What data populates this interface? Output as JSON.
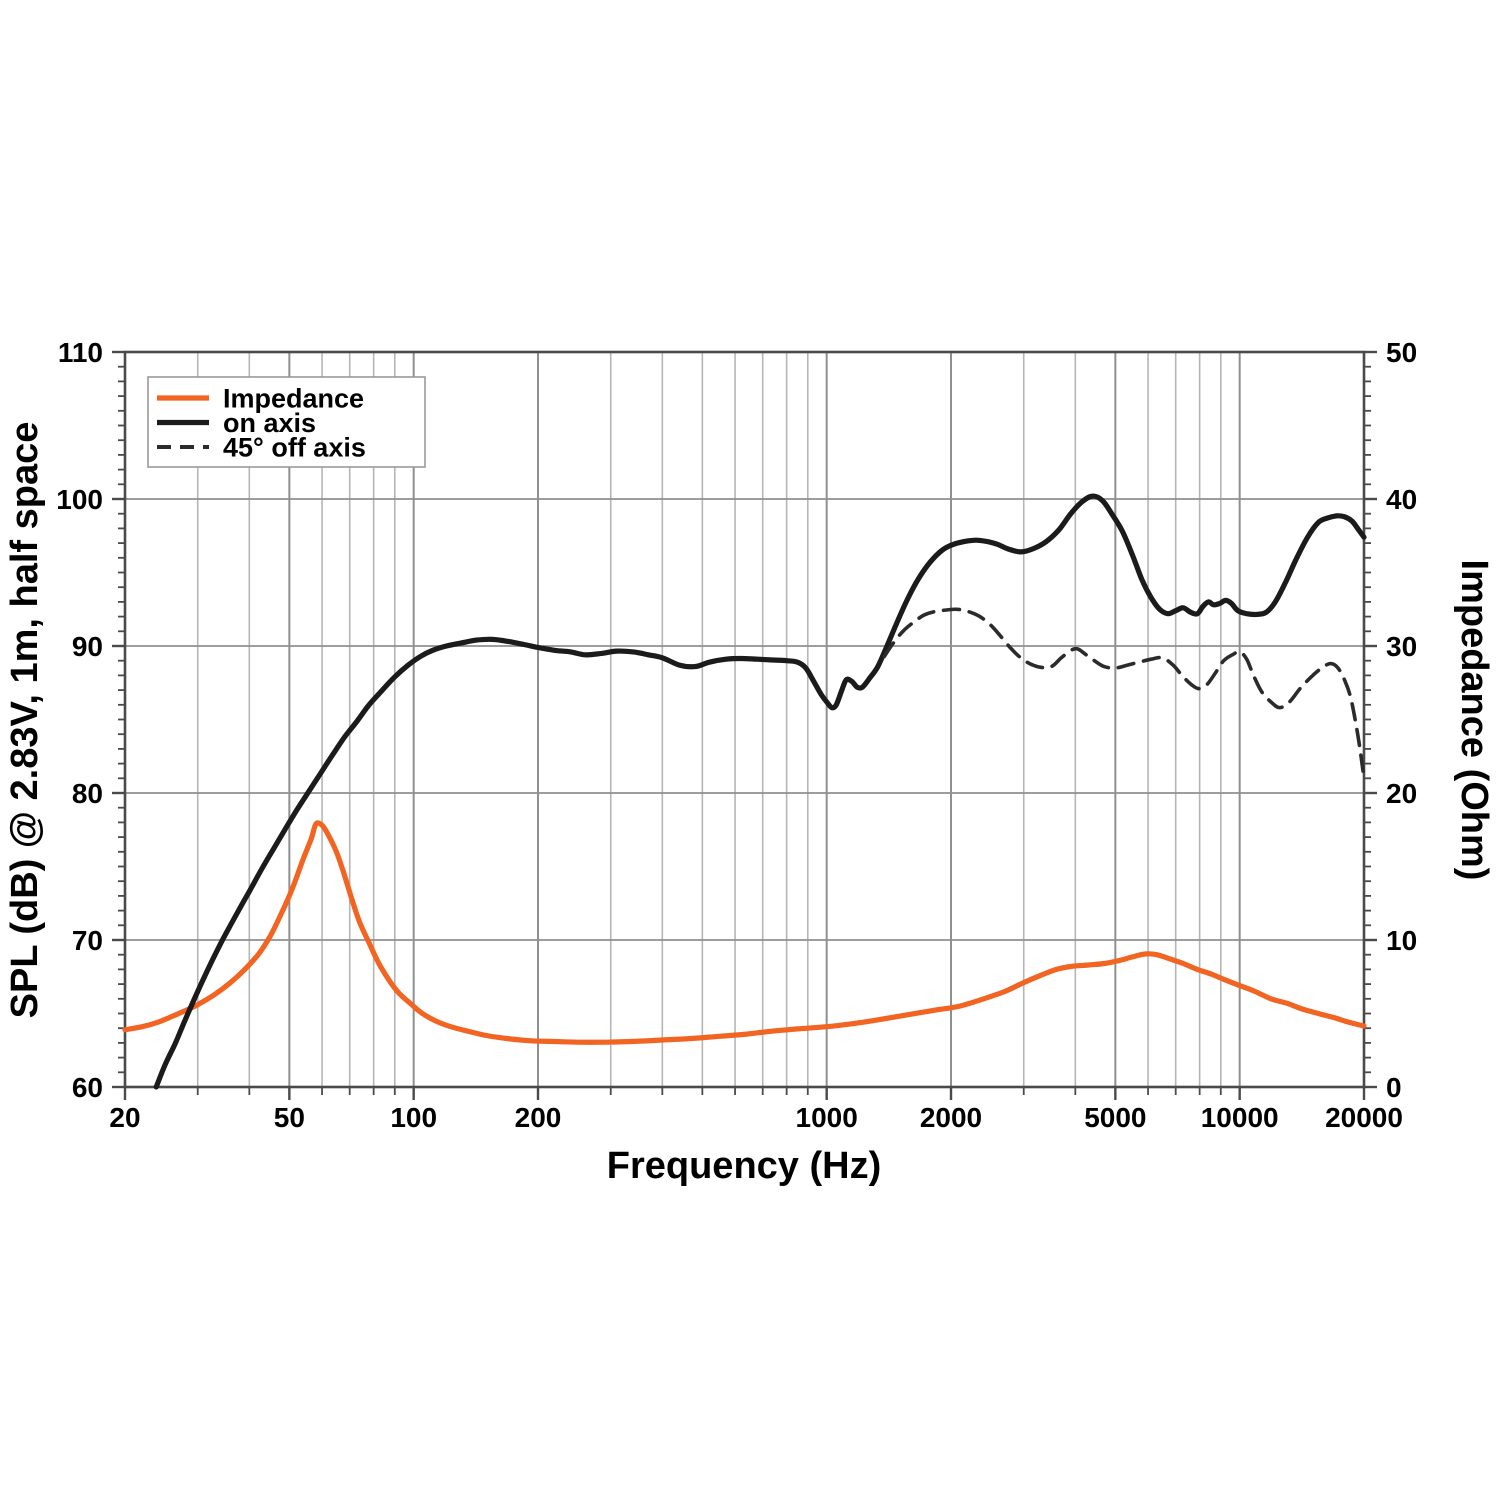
{
  "chart_data": {
    "type": "line",
    "title": "",
    "xlabel": "Frequency (Hz)",
    "ylabel_left": "SPL (dB) @ 2.83V, 1m, half space",
    "ylabel_right": "Impedance (Ohm)",
    "x_scale": "log",
    "xlim": [
      20,
      20000
    ],
    "ylim_left": [
      60,
      110
    ],
    "ylim_right": [
      0,
      50
    ],
    "grid": true,
    "x_ticks_labeled": [
      20,
      50,
      100,
      200,
      1000,
      2000,
      5000,
      10000,
      20000
    ],
    "x_gridlines_major": [
      50,
      100,
      200,
      1000,
      2000,
      5000,
      10000
    ],
    "x_gridlines_minor": [
      30,
      40,
      60,
      70,
      80,
      90,
      300,
      400,
      500,
      600,
      700,
      800,
      900,
      3000,
      4000,
      6000,
      7000,
      8000,
      9000
    ],
    "y_ticks_left": [
      60,
      70,
      80,
      90,
      100,
      110
    ],
    "y_ticks_right": [
      0,
      10,
      20,
      30,
      40,
      50
    ],
    "y_gridlines_left": [
      70,
      80,
      90,
      100
    ],
    "y_minor_tick_step_left": 1,
    "y_minor_tick_step_right": 1,
    "legend": {
      "position": "top-left",
      "items": [
        {
          "label": "Impedance",
          "color": "#f26422",
          "dash": "solid",
          "axis": "right"
        },
        {
          "label": "on axis",
          "color": "#1b1b1b",
          "dash": "solid",
          "axis": "left"
        },
        {
          "label": "45° off axis",
          "color": "#2b2b2b",
          "dash": "dashed",
          "axis": "left"
        }
      ]
    },
    "series": [
      {
        "name": "Impedance",
        "axis": "right",
        "unit": "Ohm",
        "color": "#f26422",
        "style": "solid",
        "points": [
          [
            20,
            3.9
          ],
          [
            22,
            4.1
          ],
          [
            24,
            4.4
          ],
          [
            26,
            4.8
          ],
          [
            28,
            5.2
          ],
          [
            30,
            5.6
          ],
          [
            33,
            6.3
          ],
          [
            36,
            7.1
          ],
          [
            39,
            8.0
          ],
          [
            42,
            9.0
          ],
          [
            45,
            10.3
          ],
          [
            48,
            11.9
          ],
          [
            51,
            13.6
          ],
          [
            54,
            15.5
          ],
          [
            56.5,
            16.9
          ],
          [
            58,
            17.9
          ],
          [
            60,
            17.8
          ],
          [
            62,
            17.2
          ],
          [
            65,
            16.0
          ],
          [
            68,
            14.4
          ],
          [
            71,
            12.7
          ],
          [
            74,
            11.2
          ],
          [
            78,
            9.8
          ],
          [
            82,
            8.5
          ],
          [
            87,
            7.3
          ],
          [
            92,
            6.4
          ],
          [
            98,
            5.7
          ],
          [
            105,
            5.0
          ],
          [
            113,
            4.5
          ],
          [
            123,
            4.1
          ],
          [
            135,
            3.8
          ],
          [
            150,
            3.5
          ],
          [
            168,
            3.3
          ],
          [
            190,
            3.15
          ],
          [
            215,
            3.1
          ],
          [
            250,
            3.05
          ],
          [
            290,
            3.05
          ],
          [
            340,
            3.1
          ],
          [
            400,
            3.2
          ],
          [
            470,
            3.3
          ],
          [
            550,
            3.45
          ],
          [
            640,
            3.6
          ],
          [
            740,
            3.8
          ],
          [
            850,
            3.95
          ],
          [
            1000,
            4.1
          ],
          [
            1150,
            4.3
          ],
          [
            1350,
            4.6
          ],
          [
            1600,
            4.95
          ],
          [
            1850,
            5.25
          ],
          [
            2100,
            5.5
          ],
          [
            2400,
            6.0
          ],
          [
            2700,
            6.5
          ],
          [
            3000,
            7.1
          ],
          [
            3300,
            7.6
          ],
          [
            3600,
            8.0
          ],
          [
            3900,
            8.2
          ],
          [
            4300,
            8.3
          ],
          [
            4700,
            8.4
          ],
          [
            5100,
            8.6
          ],
          [
            5500,
            8.85
          ],
          [
            5900,
            9.05
          ],
          [
            6300,
            9.0
          ],
          [
            6800,
            8.7
          ],
          [
            7300,
            8.4
          ],
          [
            7900,
            8.0
          ],
          [
            8500,
            7.7
          ],
          [
            9200,
            7.3
          ],
          [
            10000,
            6.9
          ],
          [
            10900,
            6.5
          ],
          [
            11900,
            6.0
          ],
          [
            13000,
            5.7
          ],
          [
            14200,
            5.3
          ],
          [
            15500,
            5.0
          ],
          [
            17000,
            4.7
          ],
          [
            18400,
            4.4
          ],
          [
            20000,
            4.15
          ]
        ]
      },
      {
        "name": "on axis",
        "axis": "left",
        "unit": "dB",
        "color": "#1b1b1b",
        "style": "solid",
        "points": [
          [
            23.8,
            60
          ],
          [
            25,
            61.5
          ],
          [
            26.5,
            63
          ],
          [
            28,
            64.6
          ],
          [
            30,
            66.5
          ],
          [
            32,
            68.2
          ],
          [
            34,
            69.7
          ],
          [
            36,
            71
          ],
          [
            38,
            72.2
          ],
          [
            40,
            73.3
          ],
          [
            43,
            74.9
          ],
          [
            46,
            76.3
          ],
          [
            49,
            77.6
          ],
          [
            52,
            78.8
          ],
          [
            56,
            80.2
          ],
          [
            60,
            81.5
          ],
          [
            64,
            82.7
          ],
          [
            68,
            83.8
          ],
          [
            73,
            84.9
          ],
          [
            78,
            86
          ],
          [
            84,
            87
          ],
          [
            90,
            87.9
          ],
          [
            97,
            88.7
          ],
          [
            104,
            89.3
          ],
          [
            111,
            89.7
          ],
          [
            120,
            90
          ],
          [
            130,
            90.2
          ],
          [
            142,
            90.4
          ],
          [
            155,
            90.45
          ],
          [
            170,
            90.3
          ],
          [
            185,
            90.1
          ],
          [
            200,
            89.9
          ],
          [
            220,
            89.7
          ],
          [
            240,
            89.6
          ],
          [
            260,
            89.4
          ],
          [
            285,
            89.5
          ],
          [
            310,
            89.65
          ],
          [
            340,
            89.6
          ],
          [
            370,
            89.4
          ],
          [
            400,
            89.2
          ],
          [
            440,
            88.7
          ],
          [
            480,
            88.6
          ],
          [
            520,
            88.9
          ],
          [
            570,
            89.1
          ],
          [
            620,
            89.15
          ],
          [
            680,
            89.1
          ],
          [
            740,
            89.05
          ],
          [
            800,
            89
          ],
          [
            850,
            88.9
          ],
          [
            890,
            88.5
          ],
          [
            930,
            87.6
          ],
          [
            970,
            86.7
          ],
          [
            1000,
            86.2
          ],
          [
            1030,
            85.8
          ],
          [
            1055,
            86
          ],
          [
            1085,
            86.9
          ],
          [
            1115,
            87.7
          ],
          [
            1150,
            87.6
          ],
          [
            1185,
            87.2
          ],
          [
            1220,
            87.2
          ],
          [
            1270,
            87.8
          ],
          [
            1330,
            88.6
          ],
          [
            1400,
            90
          ],
          [
            1480,
            91.6
          ],
          [
            1570,
            93.2
          ],
          [
            1670,
            94.6
          ],
          [
            1780,
            95.7
          ],
          [
            1900,
            96.5
          ],
          [
            2020,
            96.9
          ],
          [
            2150,
            97.1
          ],
          [
            2300,
            97.2
          ],
          [
            2450,
            97.1
          ],
          [
            2600,
            96.9
          ],
          [
            2750,
            96.6
          ],
          [
            2950,
            96.4
          ],
          [
            3150,
            96.6
          ],
          [
            3400,
            97.1
          ],
          [
            3650,
            97.9
          ],
          [
            3900,
            99
          ],
          [
            4150,
            99.8
          ],
          [
            4400,
            100.2
          ],
          [
            4650,
            99.9
          ],
          [
            4900,
            99
          ],
          [
            5200,
            97.8
          ],
          [
            5500,
            96.2
          ],
          [
            5800,
            94.5
          ],
          [
            6100,
            93.3
          ],
          [
            6400,
            92.5
          ],
          [
            6700,
            92.2
          ],
          [
            7000,
            92.4
          ],
          [
            7300,
            92.6
          ],
          [
            7600,
            92.3
          ],
          [
            7900,
            92.2
          ],
          [
            8150,
            92.7
          ],
          [
            8400,
            93
          ],
          [
            8650,
            92.8
          ],
          [
            8950,
            92.9
          ],
          [
            9250,
            93.1
          ],
          [
            9550,
            92.9
          ],
          [
            9900,
            92.4
          ],
          [
            10400,
            92.2
          ],
          [
            11000,
            92.15
          ],
          [
            11600,
            92.3
          ],
          [
            12200,
            93
          ],
          [
            12900,
            94.3
          ],
          [
            13700,
            95.9
          ],
          [
            14600,
            97.4
          ],
          [
            15500,
            98.4
          ],
          [
            16300,
            98.7
          ],
          [
            17100,
            98.85
          ],
          [
            17900,
            98.8
          ],
          [
            18700,
            98.5
          ],
          [
            19300,
            98
          ],
          [
            20000,
            97.4
          ]
        ]
      },
      {
        "name": "45° off axis",
        "axis": "left",
        "unit": "dB",
        "color": "#2b2b2b",
        "style": "dashed",
        "points": [
          [
            1380,
            89.3
          ],
          [
            1450,
            90.2
          ],
          [
            1530,
            91
          ],
          [
            1620,
            91.6
          ],
          [
            1720,
            92.1
          ],
          [
            1830,
            92.35
          ],
          [
            1950,
            92.45
          ],
          [
            2070,
            92.5
          ],
          [
            2200,
            92.35
          ],
          [
            2350,
            92
          ],
          [
            2500,
            91.4
          ],
          [
            2650,
            90.6
          ],
          [
            2800,
            89.8
          ],
          [
            2950,
            89.2
          ],
          [
            3100,
            88.8
          ],
          [
            3300,
            88.55
          ],
          [
            3500,
            88.6
          ],
          [
            3700,
            89.2
          ],
          [
            3900,
            89.7
          ],
          [
            4050,
            89.8
          ],
          [
            4250,
            89.4
          ],
          [
            4450,
            89
          ],
          [
            4700,
            88.6
          ],
          [
            5000,
            88.5
          ],
          [
            5350,
            88.7
          ],
          [
            5700,
            88.9
          ],
          [
            6100,
            89.1
          ],
          [
            6500,
            89.2
          ],
          [
            6900,
            88.7
          ],
          [
            7300,
            87.9
          ],
          [
            7700,
            87.3
          ],
          [
            8000,
            87.1
          ],
          [
            8350,
            87.4
          ],
          [
            8750,
            88.2
          ],
          [
            9150,
            89
          ],
          [
            9600,
            89.4
          ],
          [
            10000,
            89.6
          ],
          [
            10400,
            89.1
          ],
          [
            10800,
            88
          ],
          [
            11300,
            86.9
          ],
          [
            11900,
            86.2
          ],
          [
            12500,
            85.8
          ],
          [
            13200,
            86.2
          ],
          [
            14000,
            87.1
          ],
          [
            14900,
            87.9
          ],
          [
            15800,
            88.5
          ],
          [
            16600,
            88.8
          ],
          [
            17300,
            88.5
          ],
          [
            18000,
            87.6
          ],
          [
            18600,
            86.4
          ],
          [
            19200,
            84.4
          ],
          [
            19600,
            82.8
          ],
          [
            20000,
            81
          ]
        ]
      }
    ],
    "colors": {
      "frame": "#4a4a4a",
      "grid_major": "#8f8f8f",
      "grid_minor": "#b5b5b5",
      "legend_border": "#999999",
      "background": "#ffffff"
    }
  }
}
